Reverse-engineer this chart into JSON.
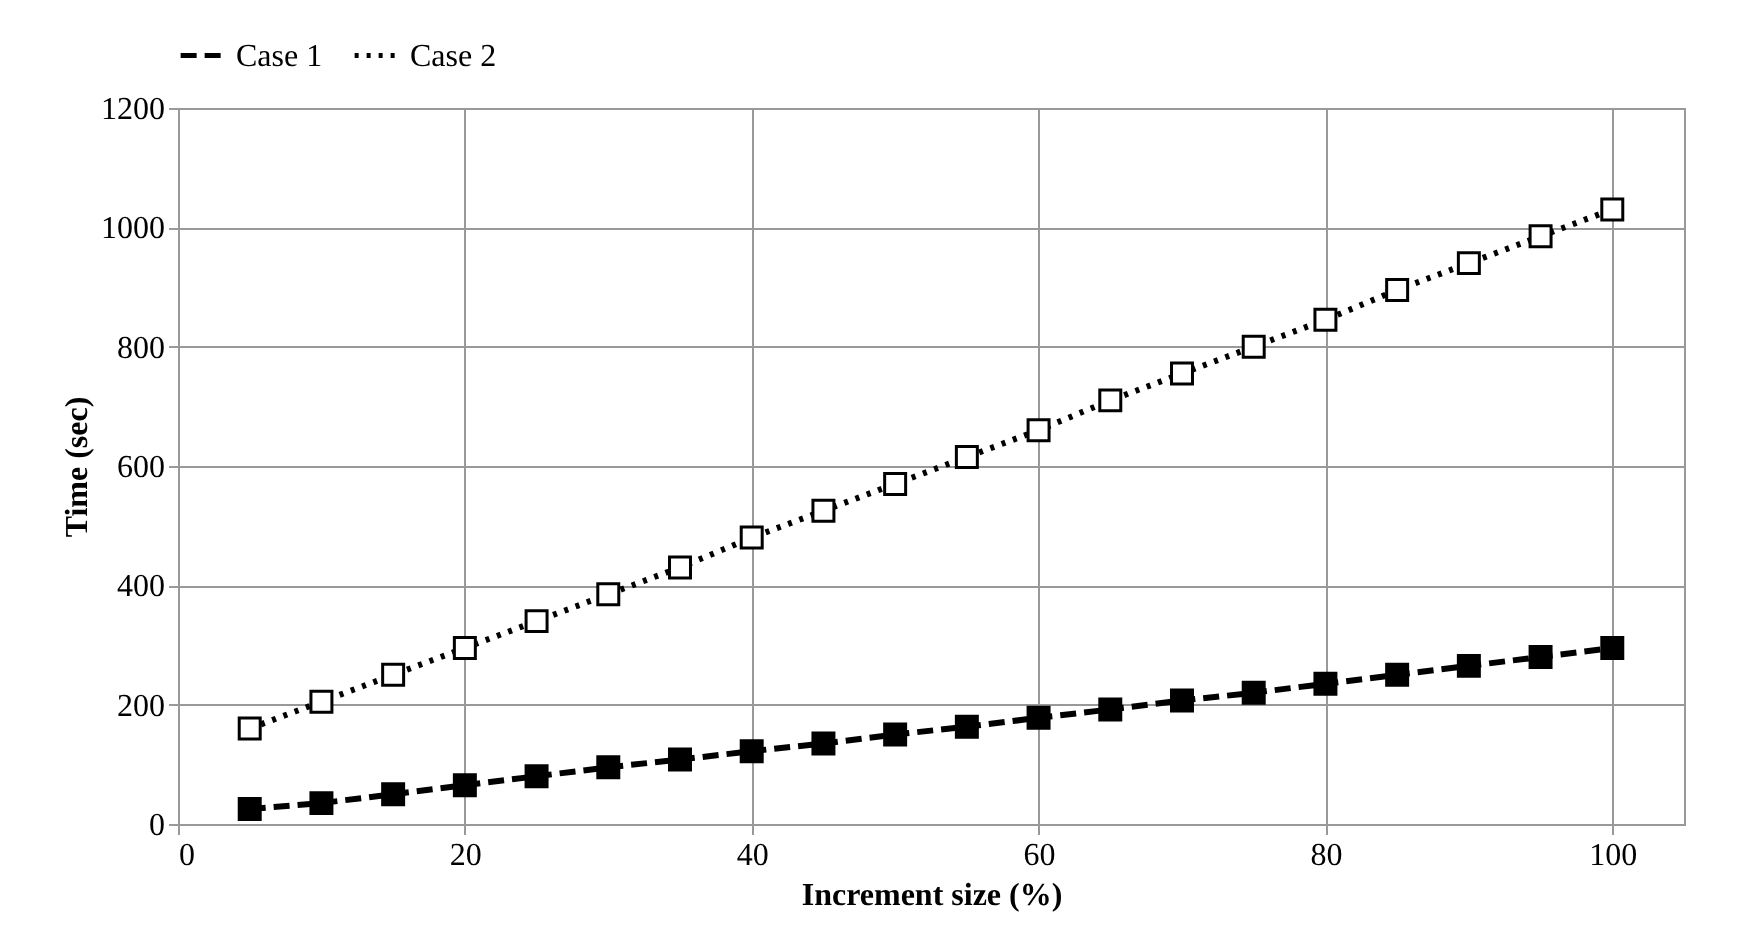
{
  "chart_data": {
    "type": "line",
    "xlabel": "Increment size (%)",
    "ylabel": "Time (sec)",
    "x": [
      5,
      10,
      15,
      20,
      25,
      30,
      35,
      40,
      45,
      50,
      55,
      60,
      65,
      70,
      75,
      80,
      85,
      90,
      95,
      100
    ],
    "series": [
      {
        "name": "Case 1",
        "color": "#000000",
        "line_style": "dashed",
        "marker": "square",
        "values": [
          25,
          35,
          50,
          65,
          80,
          95,
          108,
          122,
          135,
          150,
          163,
          178,
          192,
          207,
          220,
          235,
          250,
          265,
          280,
          295
        ]
      },
      {
        "name": "Case 2",
        "color": "#000000",
        "line_style": "dotted",
        "marker": "square",
        "values": [
          160,
          205,
          250,
          295,
          340,
          385,
          430,
          480,
          525,
          570,
          615,
          660,
          710,
          755,
          800,
          845,
          895,
          940,
          985,
          1030
        ]
      }
    ],
    "xlim": [
      0,
      105
    ],
    "xticks": [
      0,
      20,
      40,
      60,
      80,
      100
    ],
    "ylim": [
      0,
      1200
    ],
    "yticks": [
      0,
      200,
      400,
      600,
      800,
      1000,
      1200
    ],
    "grid": true,
    "legend": "top"
  }
}
